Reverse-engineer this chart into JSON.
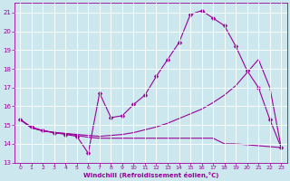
{
  "xlabel": "Windchill (Refroidissement éolien,°C)",
  "bg_color": "#cce8ee",
  "line_color": "#990099",
  "grid_color": "#ffffff",
  "xlim": [
    -0.5,
    23.5
  ],
  "ylim": [
    13,
    21.5
  ],
  "xticks": [
    0,
    1,
    2,
    3,
    4,
    5,
    6,
    7,
    8,
    9,
    10,
    11,
    12,
    13,
    14,
    15,
    16,
    17,
    18,
    19,
    20,
    21,
    22,
    23
  ],
  "yticks": [
    13,
    14,
    15,
    16,
    17,
    18,
    19,
    20,
    21
  ],
  "curve1_x": [
    0,
    1,
    2,
    3,
    4,
    5,
    6,
    7,
    8,
    9,
    10,
    11,
    12,
    13,
    14,
    15,
    16,
    17,
    18,
    19,
    20,
    21,
    22,
    23
  ],
  "curve1_y": [
    15.3,
    14.9,
    14.7,
    14.6,
    14.5,
    14.4,
    13.5,
    16.7,
    15.4,
    15.5,
    16.1,
    16.6,
    17.6,
    18.5,
    19.4,
    20.9,
    21.1,
    20.7,
    20.3,
    19.2,
    17.9,
    17.0,
    15.3,
    13.8
  ],
  "curve2_x": [
    0,
    1,
    2,
    3,
    4,
    5,
    6,
    7,
    8,
    9,
    10,
    11,
    12,
    13,
    14,
    15,
    16,
    17,
    18,
    19,
    20,
    21,
    22,
    23
  ],
  "curve2_y": [
    15.3,
    14.85,
    14.7,
    14.6,
    14.55,
    14.5,
    14.45,
    14.4,
    14.45,
    14.5,
    14.6,
    14.75,
    14.9,
    15.1,
    15.35,
    15.6,
    15.85,
    16.2,
    16.6,
    17.1,
    17.8,
    18.5,
    17.0,
    13.8
  ],
  "curve3_x": [
    0,
    1,
    2,
    3,
    4,
    5,
    6,
    7,
    8,
    9,
    10,
    11,
    12,
    13,
    14,
    15,
    16,
    17,
    18,
    19,
    20,
    21,
    22,
    23
  ],
  "curve3_y": [
    15.3,
    14.85,
    14.7,
    14.6,
    14.55,
    14.45,
    14.35,
    14.3,
    14.3,
    14.3,
    14.3,
    14.3,
    14.3,
    14.3,
    14.3,
    14.3,
    14.3,
    14.3,
    14.0,
    14.0,
    13.95,
    13.9,
    13.85,
    13.8
  ]
}
